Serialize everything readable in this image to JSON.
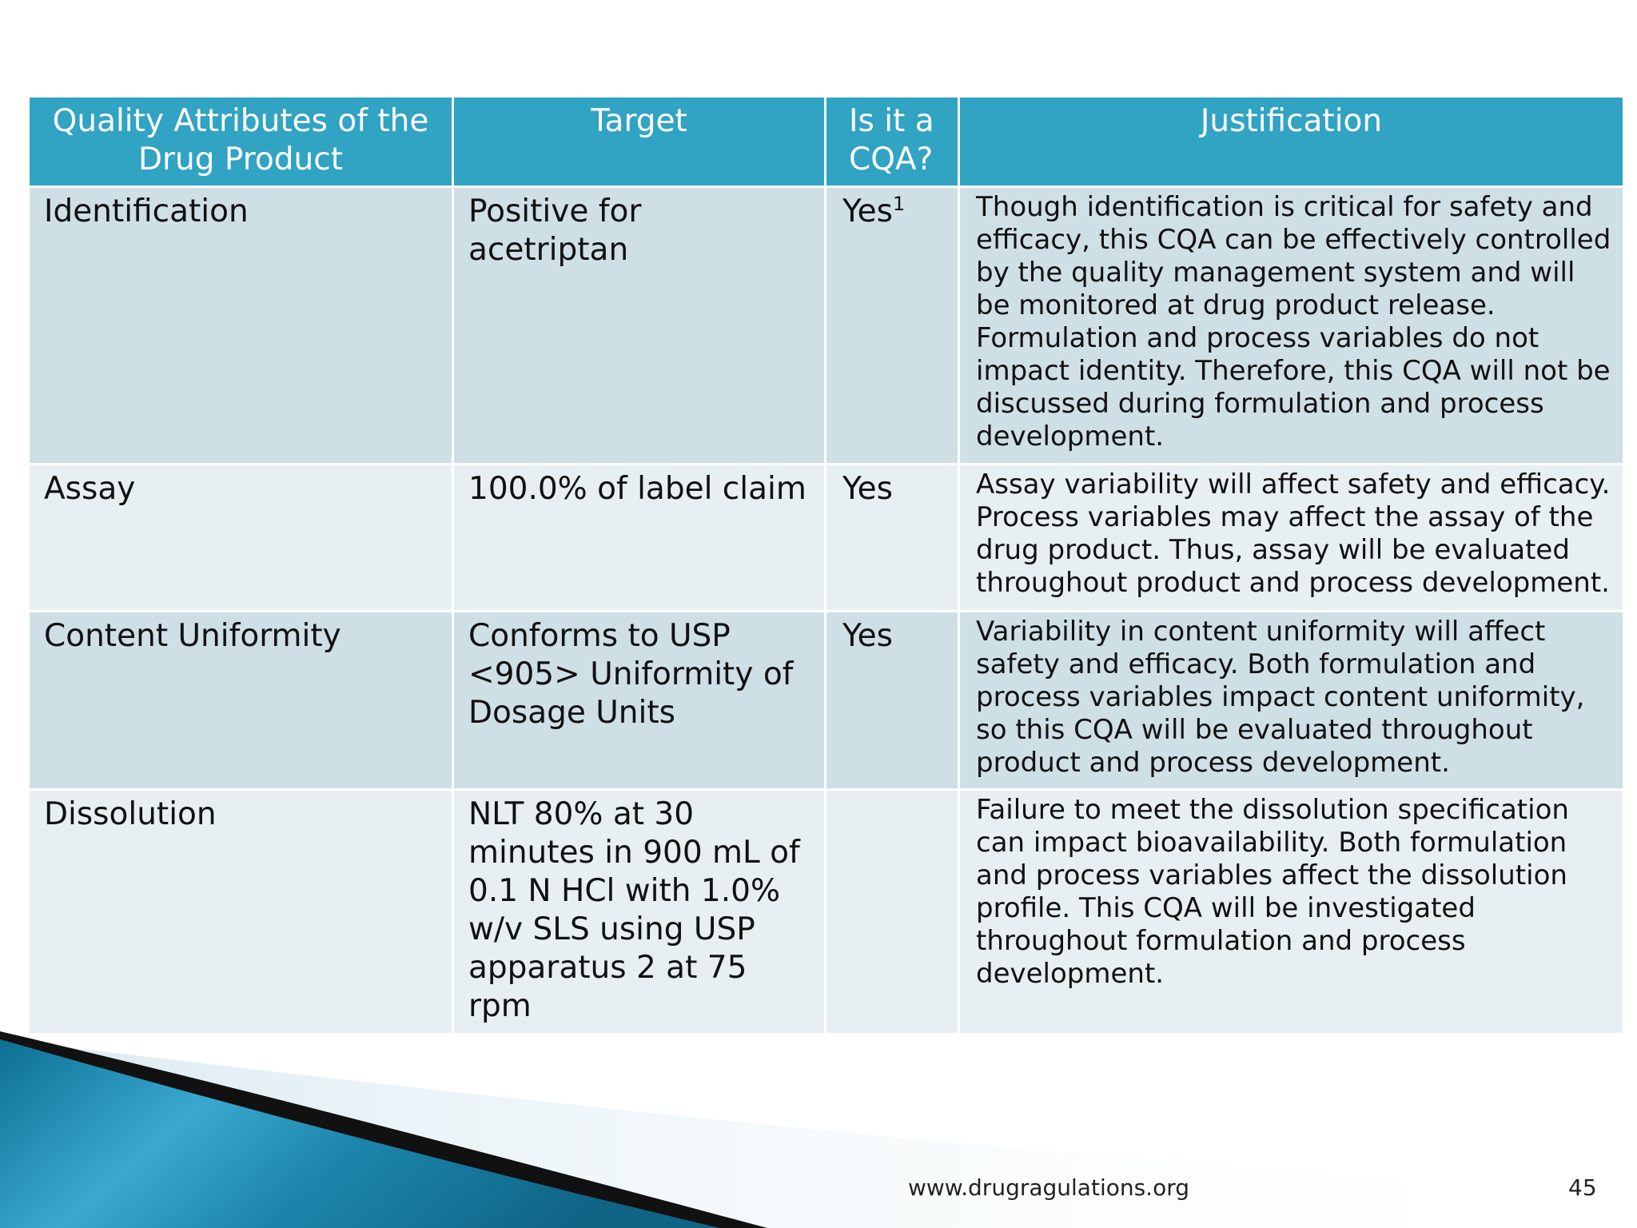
{
  "table": {
    "headers": {
      "attribute": "Quality Attributes of the Drug Product",
      "target": "Target",
      "is_cqa": "Is it a CQA?",
      "justification": "Justification"
    },
    "rows": [
      {
        "attribute": "Identification",
        "target": "Positive for acetriptan",
        "is_cqa": "Yes",
        "is_cqa_footnote": "1",
        "justification": "Though identification is critical for safety and efficacy, this CQA can be effectively controlled by the quality management system and will be monitored at drug product release. Formulation and process variables do not impact identity. Therefore, this CQA will not be discussed during formulation and process development."
      },
      {
        "attribute": "Assay",
        "target": "100.0% of label claim",
        "is_cqa": "Yes",
        "justification": "Assay variability will affect safety and efficacy. Process variables may affect the assay of the drug product. Thus, assay will be evaluated throughout product and process development."
      },
      {
        "attribute": "Content Uniformity",
        "target": "Conforms to USP <905> Uniformity of Dosage Units",
        "is_cqa": "Yes",
        "justification": "Variability in content uniformity will affect safety and efficacy. Both formulation and process variables impact content uniformity, so this CQA will be evaluated throughout product and process development."
      },
      {
        "attribute": "Dissolution",
        "target": "NLT 80% at 30 minutes in 900 mL of 0.1 N HCl with 1.0% w/v SLS using USP apparatus 2 at 75 rpm",
        "is_cqa": "",
        "justification": "Failure to meet the dissolution specification can impact bioavailability. Both formulation and process variables affect the dissolution profile. This CQA will be investigated throughout formulation and process development."
      }
    ]
  },
  "footer": {
    "url": "www.drugragulations.org",
    "page_number": "45"
  },
  "colors": {
    "header_bg": "#31a3c3",
    "row_dark": "#cfdfe6",
    "row_light": "#e8eff2",
    "wave_blue": "#1f8db0"
  }
}
